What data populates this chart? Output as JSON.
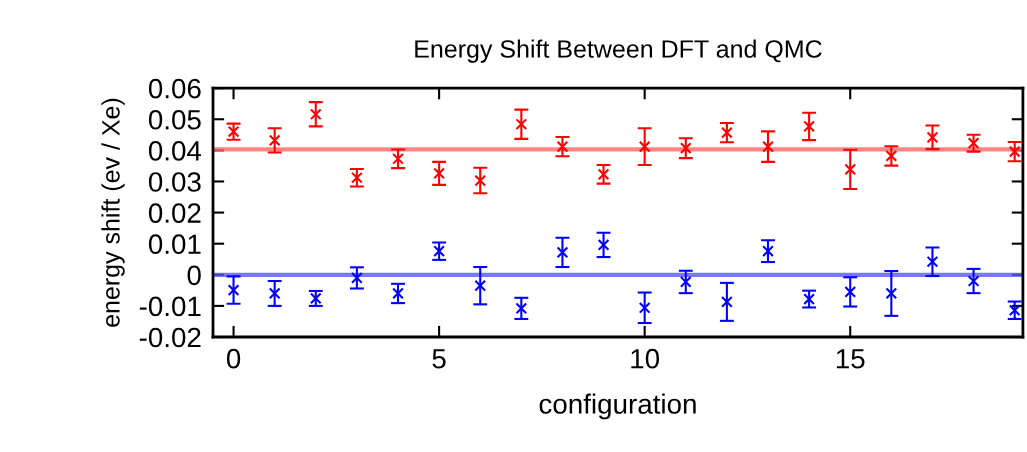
{
  "chart_data": {
    "type": "scatter",
    "title": "Energy Shift Between DFT and QMC",
    "xlabel": "configuration",
    "ylabel": "energy shift (ev / Xe)",
    "x": [
      0,
      1,
      2,
      3,
      4,
      5,
      6,
      7,
      8,
      9,
      10,
      11,
      12,
      13,
      14,
      15,
      16,
      17,
      18,
      19
    ],
    "series": [
      {
        "color": "#ff0000",
        "marker": "cross",
        "values": [
          0.046,
          0.0432,
          0.0516,
          0.0312,
          0.0373,
          0.0326,
          0.0303,
          0.0484,
          0.0412,
          0.0323,
          0.0412,
          0.0407,
          0.0457,
          0.0412,
          0.0477,
          0.0339,
          0.0382,
          0.0442,
          0.0423,
          0.0396
        ],
        "errors": [
          0.0026,
          0.0039,
          0.0039,
          0.0028,
          0.003,
          0.0037,
          0.0041,
          0.0047,
          0.0031,
          0.003,
          0.0059,
          0.0032,
          0.0031,
          0.0049,
          0.0044,
          0.0063,
          0.0031,
          0.0038,
          0.0027,
          0.0031
        ]
      },
      {
        "color": "#0000ff",
        "marker": "cross",
        "values": [
          -0.0049,
          -0.006,
          -0.0076,
          -0.001,
          -0.006,
          0.0076,
          -0.0035,
          -0.0108,
          0.0072,
          0.0096,
          -0.0106,
          -0.0023,
          -0.0087,
          0.0076,
          -0.0078,
          -0.0055,
          -0.006,
          0.0042,
          -0.002,
          -0.0114
        ],
        "errors": [
          0.0044,
          0.004,
          0.0024,
          0.0034,
          0.0031,
          0.0028,
          0.006,
          0.0034,
          0.0047,
          0.0039,
          0.0049,
          0.0036,
          0.0061,
          0.0035,
          0.0027,
          0.0047,
          0.0072,
          0.0046,
          0.0039,
          0.0028
        ]
      }
    ],
    "ref_lines": [
      {
        "axis": "y",
        "value": 0.0403,
        "color": "#ff6666"
      },
      {
        "axis": "y",
        "value": 0,
        "color": "#5555ff"
      }
    ],
    "xlim": [
      -0.5,
      19.2
    ],
    "xticks": [
      0,
      5,
      10,
      15
    ],
    "ylim": [
      -0.02,
      0.06
    ],
    "yticks": [
      -0.02,
      -0.01,
      0,
      0.01,
      0.02,
      0.03,
      0.04,
      0.05,
      0.06
    ],
    "grid": false,
    "legend": false
  }
}
